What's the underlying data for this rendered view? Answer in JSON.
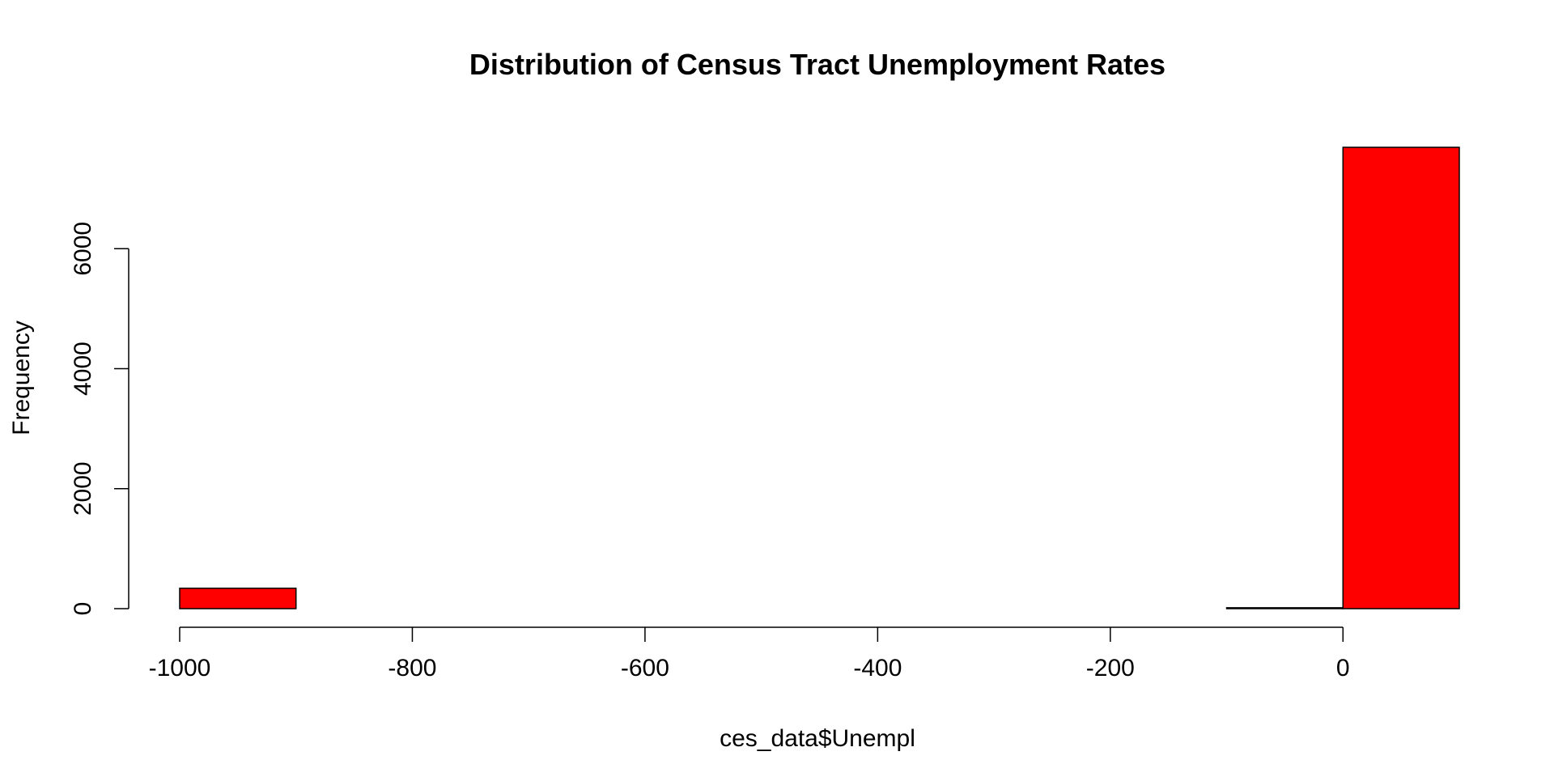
{
  "chart_data": {
    "type": "bar",
    "title": "Distribution of Census Tract Unemployment Rates",
    "xlabel": "ces_data$Unempl",
    "ylabel": "Frequency",
    "bar_color": "#ff0000",
    "bar_edge_color": "#000000",
    "bins": [
      {
        "x0": -1000,
        "x1": -900,
        "count": 340
      },
      {
        "x0": -900,
        "x1": -800,
        "count": 0
      },
      {
        "x0": -800,
        "x1": -700,
        "count": 0
      },
      {
        "x0": -700,
        "x1": -600,
        "count": 0
      },
      {
        "x0": -600,
        "x1": -500,
        "count": 0
      },
      {
        "x0": -500,
        "x1": -400,
        "count": 0
      },
      {
        "x0": -400,
        "x1": -300,
        "count": 0
      },
      {
        "x0": -300,
        "x1": -200,
        "count": 0
      },
      {
        "x0": -200,
        "x1": -100,
        "count": 0
      },
      {
        "x0": -100,
        "x1": 0,
        "count": 15
      },
      {
        "x0": 0,
        "x1": 100,
        "count": 7690
      }
    ],
    "xlim": [
      -1000,
      100
    ],
    "ylim": [
      0,
      7690
    ],
    "x_ticks": [
      -1000,
      -800,
      -600,
      -400,
      -200,
      0
    ],
    "x_tick_labels": [
      "-1000",
      "-800",
      "-600",
      "-400",
      "-200",
      "0"
    ],
    "y_ticks": [
      0,
      2000,
      4000,
      6000
    ],
    "y_tick_labels": [
      "0",
      "2000",
      "4000",
      "6000"
    ],
    "grid": false,
    "legend": "none"
  }
}
